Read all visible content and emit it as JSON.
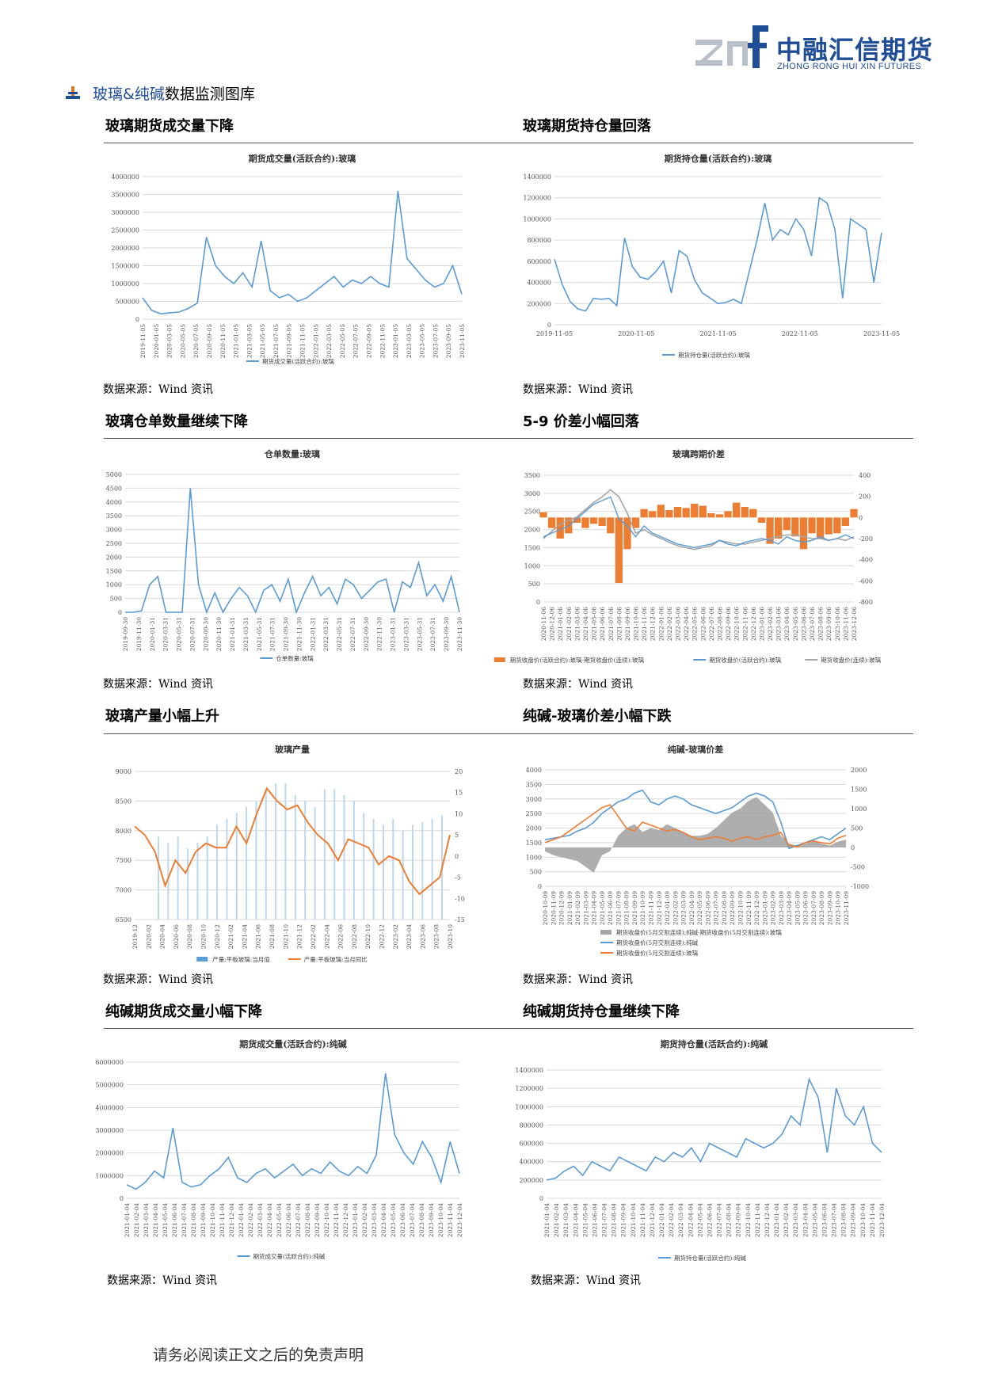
{
  "header": {
    "logo_mark": "znf",
    "logo_name": "中融汇信期货",
    "logo_sub": "ZHONG RONG HUI XIN FUTURES",
    "section_prefix": "玻璃&纯碱",
    "section_suffix": "数据监测图库"
  },
  "panels": [
    {
      "title": "玻璃期货成交量下降",
      "source": "数据来源：Wind 资讯"
    },
    {
      "title": "玻璃期货持仓量回落",
      "source": "数据来源：Wind 资讯"
    },
    {
      "title": "玻璃仓单数量继续下降",
      "source": "数据来源：Wind 资讯"
    },
    {
      "title": "5-9 价差小幅回落",
      "source": "数据来源：Wind 资讯"
    },
    {
      "title": "玻璃产量小幅上升",
      "source": "数据来源：Wind 资讯"
    },
    {
      "title": "纯碱-玻璃价差小幅下跌",
      "source": "数据来源：Wind 资讯"
    },
    {
      "title": "纯碱期货成交量小幅下降",
      "source": "数据来源：Wind 资讯"
    },
    {
      "title": "纯碱期货持仓量继续下降",
      "source": "数据来源：Wind 资讯"
    }
  ],
  "footer": "请务必阅读正文之后的免责声明",
  "colors": {
    "blue": "#5b9bd5",
    "orange": "#ed7d31",
    "gray": "#a5a5a5",
    "brand": "#1f4e96"
  },
  "chart_data": [
    {
      "type": "line",
      "title": "期货成交量(活跃合约):玻璃",
      "legend": [
        "期货成交量(活跃合约):玻璃"
      ],
      "ylim": [
        0,
        4000000
      ],
      "yticks": [
        "0",
        "500000",
        "1000000",
        "1500000",
        "2000000",
        "2500000",
        "3000000",
        "3500000",
        "4000000"
      ],
      "xticks": [
        "2019-11-05",
        "2020-01-05",
        "2020-03-05",
        "2020-05-05",
        "2020-07-05",
        "2020-09-05",
        "2020-11-05",
        "2021-01-05",
        "2021-03-05",
        "2021-05-05",
        "2021-07-05",
        "2021-09-05",
        "2021-11-05",
        "2022-01-05",
        "2022-03-05",
        "2022-05-05",
        "2022-07-05",
        "2022-09-05",
        "2022-11-05",
        "2023-01-05",
        "2023-03-05",
        "2023-05-05",
        "2023-07-05",
        "2023-09-05",
        "2023-11-05"
      ],
      "series": [
        {
          "name": "期货成交量(活跃合约):玻璃",
          "values": [
            600000,
            250000,
            150000,
            180000,
            200000,
            300000,
            450000,
            2300000,
            1500000,
            1200000,
            1000000,
            1300000,
            900000,
            2200000,
            800000,
            600000,
            700000,
            500000,
            600000,
            800000,
            1000000,
            1200000,
            900000,
            1100000,
            1000000,
            1200000,
            1000000,
            900000,
            3600000,
            1700000,
            1400000,
            1100000,
            900000,
            1000000,
            1500000,
            700000
          ]
        }
      ]
    },
    {
      "type": "line",
      "title": "期货持仓量(活跃合约):玻璃",
      "legend": [
        "期货持仓量(活跃合约):玻璃"
      ],
      "ylim": [
        0,
        1400000
      ],
      "yticks": [
        "0",
        "200000",
        "400000",
        "600000",
        "800000",
        "1000000",
        "1200000",
        "1400000"
      ],
      "xticks": [
        "2019-11-05",
        "2020-11-05",
        "2021-11-05",
        "2022-11-05",
        "2023-11-05"
      ],
      "series": [
        {
          "name": "期货持仓量(活跃合约):玻璃",
          "values": [
            620000,
            380000,
            220000,
            150000,
            130000,
            250000,
            240000,
            250000,
            180000,
            820000,
            550000,
            450000,
            430000,
            500000,
            600000,
            300000,
            700000,
            650000,
            420000,
            300000,
            250000,
            200000,
            210000,
            240000,
            200000,
            500000,
            800000,
            1150000,
            800000,
            900000,
            850000,
            1000000,
            900000,
            650000,
            1200000,
            1150000,
            900000,
            250000,
            1000000,
            950000,
            900000,
            400000,
            870000
          ]
        }
      ]
    },
    {
      "type": "line",
      "title": "仓单数量:玻璃",
      "legend": [
        "仓单数量:玻璃"
      ],
      "ylim": [
        0,
        5000
      ],
      "yticks": [
        "0",
        "500",
        "1000",
        "1500",
        "2000",
        "2500",
        "3000",
        "3500",
        "4000",
        "4500",
        "5000"
      ],
      "xticks": [
        "2019-09-30",
        "2019-11-30",
        "2020-01-31",
        "2020-03-31",
        "2020-05-31",
        "2020-07-31",
        "2020-09-30",
        "2020-11-30",
        "2021-01-31",
        "2021-03-31",
        "2021-05-31",
        "2021-07-31",
        "2021-09-30",
        "2021-11-30",
        "2022-01-31",
        "2022-03-31",
        "2022-05-31",
        "2022-07-31",
        "2022-09-30",
        "2022-11-30",
        "2023-01-31",
        "2023-03-31",
        "2023-05-31",
        "2023-07-31",
        "2023-09-30",
        "2023-11-30"
      ],
      "series": [
        {
          "name": "仓单数量:玻璃",
          "values": [
            0,
            0,
            50,
            1000,
            1300,
            0,
            0,
            0,
            4500,
            1000,
            0,
            700,
            0,
            500,
            900,
            600,
            0,
            800,
            1000,
            400,
            1200,
            0,
            700,
            1300,
            600,
            900,
            300,
            1200,
            1000,
            500,
            800,
            1100,
            1200,
            0,
            1100,
            900,
            1800,
            600,
            1000,
            400,
            1300,
            0
          ]
        }
      ]
    },
    {
      "type": "line",
      "title": "玻璃跨期价差",
      "legend": [
        "期货收盘价(活跃合约):玻璃-期货收盘价(连续):玻璃",
        "期货收盘价(活跃合约):玻璃",
        "期货收盘价(连续):玻璃"
      ],
      "ylim": [
        0,
        3500
      ],
      "y2lim": [
        -800,
        400
      ],
      "yticks": [
        "0",
        "500",
        "1000",
        "1500",
        "2000",
        "2500",
        "3000",
        "3500"
      ],
      "y2ticks": [
        "-800",
        "-600",
        "-400",
        "-200",
        "0",
        "200",
        "400"
      ],
      "xticks": [
        "2020-11-06",
        "2020-12-06",
        "2021-01-06",
        "2021-02-06",
        "2021-03-06",
        "2021-04-06",
        "2021-05-06",
        "2021-06-06",
        "2021-07-06",
        "2021-08-06",
        "2021-09-06",
        "2021-10-06",
        "2021-11-06",
        "2021-12-06",
        "2022-01-06",
        "2022-02-06",
        "2022-03-06",
        "2022-04-06",
        "2022-05-06",
        "2022-06-06",
        "2022-07-06",
        "2022-08-06",
        "2022-09-06",
        "2022-10-06",
        "2022-11-06",
        "2022-12-06",
        "2023-01-06",
        "2023-02-06",
        "2023-03-06",
        "2023-04-06",
        "2023-05-06",
        "2023-06-06",
        "2023-07-06",
        "2023-08-06",
        "2023-09-06",
        "2023-10-06",
        "2023-11-06",
        "2023-12-06"
      ],
      "series": [
        {
          "name": "期货收盘价(活跃合约):玻璃-期货收盘价(连续):玻璃",
          "values": [
            50,
            -100,
            -200,
            -150,
            -50,
            -100,
            -60,
            -80,
            -150,
            -620,
            -300,
            -100,
            80,
            60,
            120,
            70,
            100,
            90,
            130,
            110,
            40,
            30,
            60,
            140,
            100,
            80,
            -50,
            -250,
            -200,
            -120,
            -180,
            -300,
            -150,
            -200,
            -160,
            -150,
            -80,
            80
          ]
        },
        {
          "name": "期货收盘价(活跃合约):玻璃",
          "values": [
            1800,
            1900,
            2000,
            2100,
            2300,
            2500,
            2700,
            2800,
            2900,
            2300,
            2100,
            1800,
            2100,
            1900,
            1800,
            1700,
            1600,
            1550,
            1500,
            1550,
            1600,
            1700,
            1600,
            1550,
            1650,
            1700,
            1750,
            1700,
            1600,
            1800,
            1700,
            1650,
            1700,
            1800,
            1700,
            1750,
            1850,
            1750
          ]
        },
        {
          "name": "期货收盘价(连续):玻璃",
          "values": [
            1750,
            1950,
            2150,
            2250,
            2350,
            2550,
            2750,
            2900,
            3100,
            2900,
            2450,
            1900,
            2000,
            1850,
            1750,
            1650,
            1550,
            1500,
            1450,
            1500,
            1550,
            1700,
            1650,
            1600,
            1600,
            1650,
            1700,
            1750,
            1800,
            1850,
            1850,
            1800,
            1750,
            1750,
            1700,
            1750,
            1700,
            1800
          ]
        }
      ]
    },
    {
      "type": "bar",
      "title": "玻璃产量",
      "legend": [
        "产量:平板玻璃:当月值",
        "产量:平板玻璃:当月同比"
      ],
      "ylim": [
        6500,
        9000
      ],
      "y2lim": [
        -15,
        20
      ],
      "yticks": [
        "6500",
        "7000",
        "7500",
        "8000",
        "8500",
        "9000"
      ],
      "y2ticks": [
        "-15",
        "-10",
        "-5",
        "0",
        "5",
        "10",
        "15",
        "20"
      ],
      "xticks": [
        "2019-12",
        "2020-02",
        "2020-04",
        "2020-06",
        "2020-08",
        "2020-10",
        "2020-12",
        "2021-02",
        "2021-04",
        "2021-06",
        "2021-08",
        "2021-10",
        "2021-12",
        "2022-02",
        "2022-04",
        "2022-06",
        "2022-08",
        "2022-10",
        "2022-12",
        "2023-02",
        "2023-04",
        "2023-06",
        "2023-08",
        "2023-10"
      ],
      "series": [
        {
          "name": "产量:平板玻璃:当月值",
          "values": [
            7900,
            7800,
            7900,
            7700,
            7800,
            7900,
            8100,
            8200,
            8300,
            8400,
            8500,
            8700,
            8800,
            8800,
            8600,
            8500,
            8400,
            8700,
            8700,
            8600,
            8500,
            8300,
            8200,
            8100,
            8200,
            8000,
            8100,
            8150,
            8200,
            8250
          ]
        },
        {
          "name": "产量:平板玻璃:当月同比",
          "values": [
            7,
            5,
            1,
            -7,
            -1,
            -4,
            1,
            3,
            2,
            2,
            7,
            3,
            10,
            16,
            13,
            11,
            12,
            8,
            5,
            3,
            -1,
            4,
            3,
            2,
            -2,
            0,
            -1,
            -6,
            -9,
            -7,
            -5,
            5
          ]
        }
      ]
    },
    {
      "type": "area",
      "title": "纯碱-玻璃价差",
      "legend": [
        "期货收盘价(5月交割连续):纯碱-期货收盘价(5月交割连续):玻璃",
        "期货收盘价(5月交割连续):纯碱",
        "期货收盘价(5月交割连续):玻璃"
      ],
      "ylim": [
        0,
        4000
      ],
      "y2lim": [
        -1000,
        2000
      ],
      "yticks": [
        "0",
        "500",
        "1000",
        "1500",
        "2000",
        "2500",
        "3000",
        "3500",
        "4000"
      ],
      "y2ticks": [
        "-1000",
        "-500",
        "0",
        "500",
        "1000",
        "1500",
        "2000"
      ],
      "xticks": [
        "2020-10-09",
        "2020-11-09",
        "2020-12-09",
        "2021-01-09",
        "2021-02-09",
        "2021-03-09",
        "2021-04-09",
        "2021-05-09",
        "2021-06-09",
        "2021-07-09",
        "2021-08-09",
        "2021-09-09",
        "2021-10-09",
        "2021-11-09",
        "2021-12-09",
        "2022-01-09",
        "2022-02-09",
        "2022-03-09",
        "2022-04-09",
        "2022-05-09",
        "2022-06-09",
        "2022-07-09",
        "2022-08-09",
        "2022-09-09",
        "2022-10-09",
        "2022-11-09",
        "2022-12-09",
        "2023-01-09",
        "2023-02-09",
        "2023-03-09",
        "2023-04-09",
        "2023-05-09",
        "2023-06-09",
        "2023-07-09",
        "2023-08-09",
        "2023-09-09",
        "2023-10-09",
        "2023-11-09"
      ],
      "series": [
        {
          "name": "期货收盘价(5月交割连续):纯碱-期货收盘价(5月交割连续):玻璃",
          "values": [
            -100,
            -200,
            -250,
            -300,
            -350,
            -500,
            -650,
            -200,
            -100,
            300,
            500,
            600,
            400,
            500,
            450,
            600,
            500,
            400,
            300,
            300,
            350,
            500,
            700,
            900,
            1000,
            1200,
            1300,
            1100,
            900,
            300,
            100,
            50,
            100,
            150,
            100,
            50,
            150,
            200
          ]
        },
        {
          "name": "期货收盘价(5月交割连续):纯碱",
          "values": [
            1600,
            1650,
            1700,
            1750,
            1900,
            2000,
            2200,
            2500,
            2700,
            2900,
            3000,
            3200,
            3300,
            2900,
            2800,
            3000,
            3100,
            3000,
            2800,
            2700,
            2600,
            2500,
            2600,
            2700,
            2900,
            3100,
            3200,
            3100,
            2900,
            2200,
            1300,
            1400,
            1500,
            1600,
            1700,
            1600,
            1800,
            2000
          ]
        },
        {
          "name": "期货收盘价(5月交割连续):玻璃",
          "values": [
            1500,
            1600,
            1700,
            1900,
            2100,
            2300,
            2500,
            2700,
            2800,
            2400,
            2000,
            1900,
            2200,
            2100,
            2000,
            1900,
            1950,
            1850,
            1700,
            1600,
            1650,
            1700,
            1650,
            1550,
            1650,
            1700,
            1600,
            1700,
            1750,
            1850,
            1400,
            1350,
            1500,
            1550,
            1500,
            1450,
            1650,
            1750
          ]
        }
      ]
    },
    {
      "type": "line",
      "title": "期货成交量(活跃合约):纯碱",
      "legend": [
        "期货成交量(活跃合约):纯碱"
      ],
      "ylim": [
        0,
        6000000
      ],
      "yticks": [
        "0",
        "1000000",
        "2000000",
        "3000000",
        "4000000",
        "5000000",
        "6000000"
      ],
      "xticks": [
        "2021-01-04",
        "2021-02-04",
        "2021-03-04",
        "2021-04-04",
        "2021-05-04",
        "2021-06-04",
        "2021-07-04",
        "2021-08-04",
        "2021-09-04",
        "2021-10-04",
        "2021-11-04",
        "2021-12-04",
        "2022-01-04",
        "2022-02-04",
        "2022-03-04",
        "2022-04-04",
        "2022-05-04",
        "2022-06-04",
        "2022-07-04",
        "2022-08-04",
        "2022-09-04",
        "2022-10-04",
        "2022-11-04",
        "2022-12-04",
        "2023-01-04",
        "2023-02-04",
        "2023-03-04",
        "2023-04-04",
        "2023-05-04",
        "2023-06-04",
        "2023-07-04",
        "2023-08-04",
        "2023-09-04",
        "2023-10-04",
        "2023-11-04",
        "2023-12-04"
      ],
      "series": [
        {
          "name": "期货成交量(活跃合约):纯碱",
          "values": [
            600000,
            400000,
            700000,
            1200000,
            900000,
            3100000,
            700000,
            500000,
            600000,
            1000000,
            1300000,
            1800000,
            900000,
            700000,
            1100000,
            1300000,
            900000,
            1200000,
            1500000,
            1000000,
            1300000,
            1100000,
            1600000,
            1200000,
            1000000,
            1400000,
            1100000,
            1900000,
            5500000,
            2800000,
            2000000,
            1500000,
            2500000,
            1800000,
            700000,
            2500000,
            1100000
          ]
        }
      ]
    },
    {
      "type": "line",
      "title": "期货持仓量(活跃合约):纯碱",
      "legend": [
        "期货持仓量(活跃合约):纯碱"
      ],
      "ylim": [
        0,
        1400000
      ],
      "yticks": [
        "0",
        "200000",
        "400000",
        "600000",
        "800000",
        "1000000",
        "1200000",
        "1400000"
      ],
      "xticks": [
        "2021-01-04",
        "2021-02-04",
        "2021-03-04",
        "2021-04-04",
        "2021-05-04",
        "2021-06-04",
        "2021-07-04",
        "2021-08-04",
        "2021-09-04",
        "2021-10-04",
        "2021-11-04",
        "2021-12-04",
        "2022-01-04",
        "2022-02-04",
        "2022-03-04",
        "2022-04-04",
        "2022-05-04",
        "2022-06-04",
        "2022-07-04",
        "2022-08-04",
        "2022-09-04",
        "2022-10-04",
        "2022-11-04",
        "2022-12-04",
        "2023-01-04",
        "2023-02-04",
        "2023-03-04",
        "2023-04-04",
        "2023-05-04",
        "2023-06-04",
        "2023-07-04",
        "2023-08-04",
        "2023-09-04",
        "2023-10-04",
        "2023-11-04",
        "2023-12-04"
      ],
      "series": [
        {
          "name": "期货持仓量(活跃合约):纯碱",
          "values": [
            200000,
            220000,
            300000,
            350000,
            250000,
            400000,
            350000,
            300000,
            450000,
            400000,
            350000,
            300000,
            450000,
            400000,
            500000,
            450000,
            550000,
            400000,
            600000,
            550000,
            500000,
            450000,
            650000,
            600000,
            550000,
            600000,
            700000,
            900000,
            800000,
            1300000,
            1100000,
            500000,
            1200000,
            900000,
            800000,
            1000000,
            600000,
            500000
          ]
        }
      ]
    }
  ]
}
